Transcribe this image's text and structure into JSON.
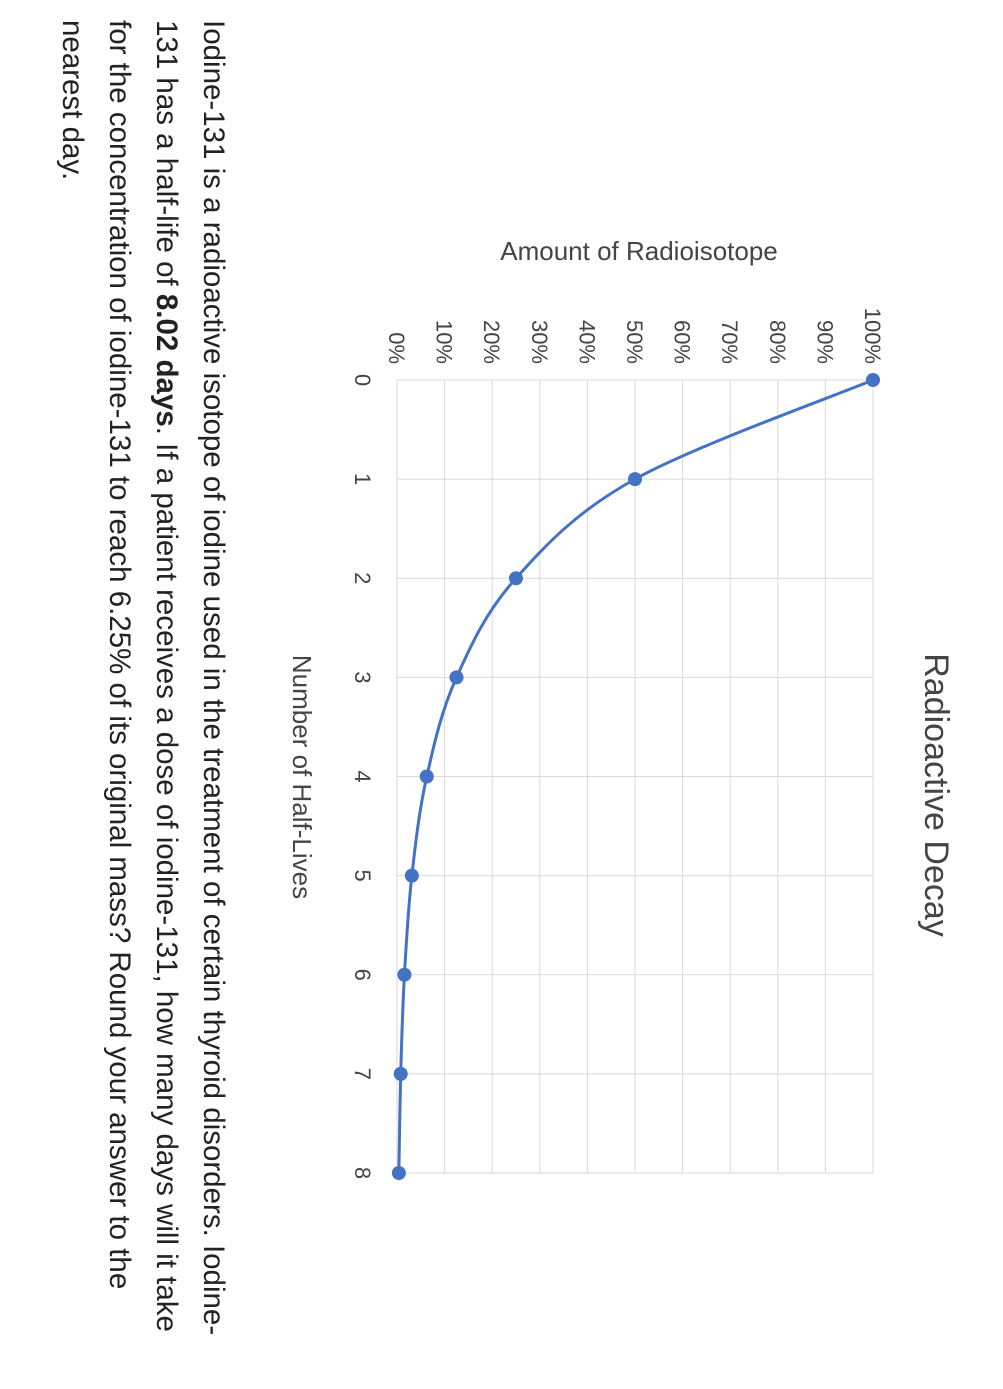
{
  "chart_data": {
    "type": "line",
    "title": "Radioactive Decay",
    "xlabel": "Number of Half-Lives",
    "ylabel": "Amount of Radioisotope",
    "x": [
      0,
      1,
      2,
      3,
      4,
      5,
      6,
      7,
      8
    ],
    "series": [
      {
        "values": [
          100,
          50,
          25,
          12.5,
          6.25,
          3.125,
          1.5625,
          0.78125,
          0.390625
        ]
      }
    ],
    "xlim": [
      0,
      8
    ],
    "ylim": [
      0,
      100
    ],
    "x_ticks": [
      "0",
      "1",
      "2",
      "3",
      "4",
      "5",
      "6",
      "7",
      "8"
    ],
    "y_ticks": [
      "0%",
      "10%",
      "20%",
      "30%",
      "40%",
      "50%",
      "60%",
      "70%",
      "80%",
      "90%",
      "100%"
    ],
    "grid": true,
    "smooth": true,
    "series_color": "#4472c4",
    "legend": "none"
  },
  "question": {
    "part1": "Iodine-131 is a radioactive isotope of iodine used in the treatment of certain thyroid disorders. Iodine-131 has a half-life of ",
    "bold": "8.02 days",
    "part2": ". If a patient receives a dose of iodine-131, how many days will it take for the concentration of iodine-131 to reach 6.25% of its original mass? Round your answer to the nearest day."
  }
}
